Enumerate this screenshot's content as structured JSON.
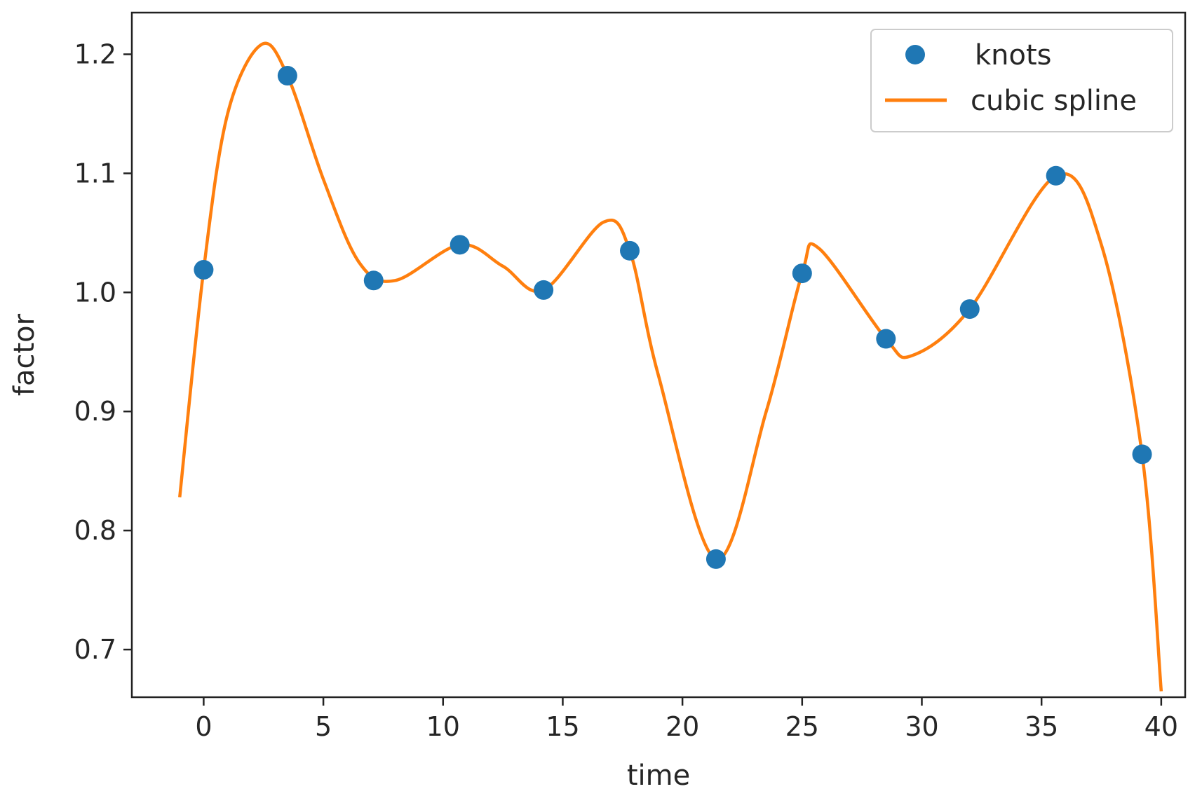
{
  "chart_data": {
    "type": "line",
    "title": "",
    "xlabel": "time",
    "ylabel": "factor",
    "xlim": [
      -3,
      41
    ],
    "ylim": [
      0.66,
      1.235
    ],
    "xticks": [
      0,
      5,
      10,
      15,
      20,
      25,
      30,
      35,
      40
    ],
    "xtick_labels": [
      "0",
      "5",
      "10",
      "15",
      "20",
      "25",
      "30",
      "35",
      "40"
    ],
    "yticks": [
      0.7,
      0.8,
      0.9,
      1.0,
      1.1,
      1.2
    ],
    "ytick_labels": [
      "0.7",
      "0.8",
      "0.9",
      "1.0",
      "1.1",
      "1.2"
    ],
    "grid": false,
    "legend_position": "top-right",
    "series": [
      {
        "name": "knots",
        "kind": "scatter",
        "color": "#1f77b4",
        "x": [
          0,
          3.5,
          7.1,
          10.7,
          14.2,
          17.8,
          21.4,
          25.0,
          28.5,
          32.0,
          35.6,
          39.2
        ],
        "y": [
          1.019,
          1.182,
          1.01,
          1.04,
          1.002,
          1.035,
          0.776,
          1.016,
          0.961,
          0.986,
          1.098,
          0.864
        ]
      },
      {
        "name": "cubic spline",
        "kind": "line",
        "color": "#ff7f0e",
        "x": [
          -1.0,
          0.0,
          1.0,
          2.4,
          3.5,
          5.0,
          6.5,
          8.0,
          10.7,
          12.5,
          14.2,
          16.7,
          17.8,
          19.0,
          21.4,
          23.5,
          25.0,
          25.7,
          28.5,
          29.6,
          32.0,
          35.6,
          37.5,
          39.2,
          40.0
        ],
        "y": [
          0.828,
          1.019,
          1.15,
          1.208,
          1.182,
          1.095,
          1.025,
          1.01,
          1.04,
          1.022,
          1.002,
          1.059,
          1.035,
          0.93,
          0.776,
          0.9,
          1.016,
          1.037,
          0.961,
          0.947,
          0.986,
          1.098,
          1.04,
          0.864,
          0.665
        ]
      }
    ]
  }
}
